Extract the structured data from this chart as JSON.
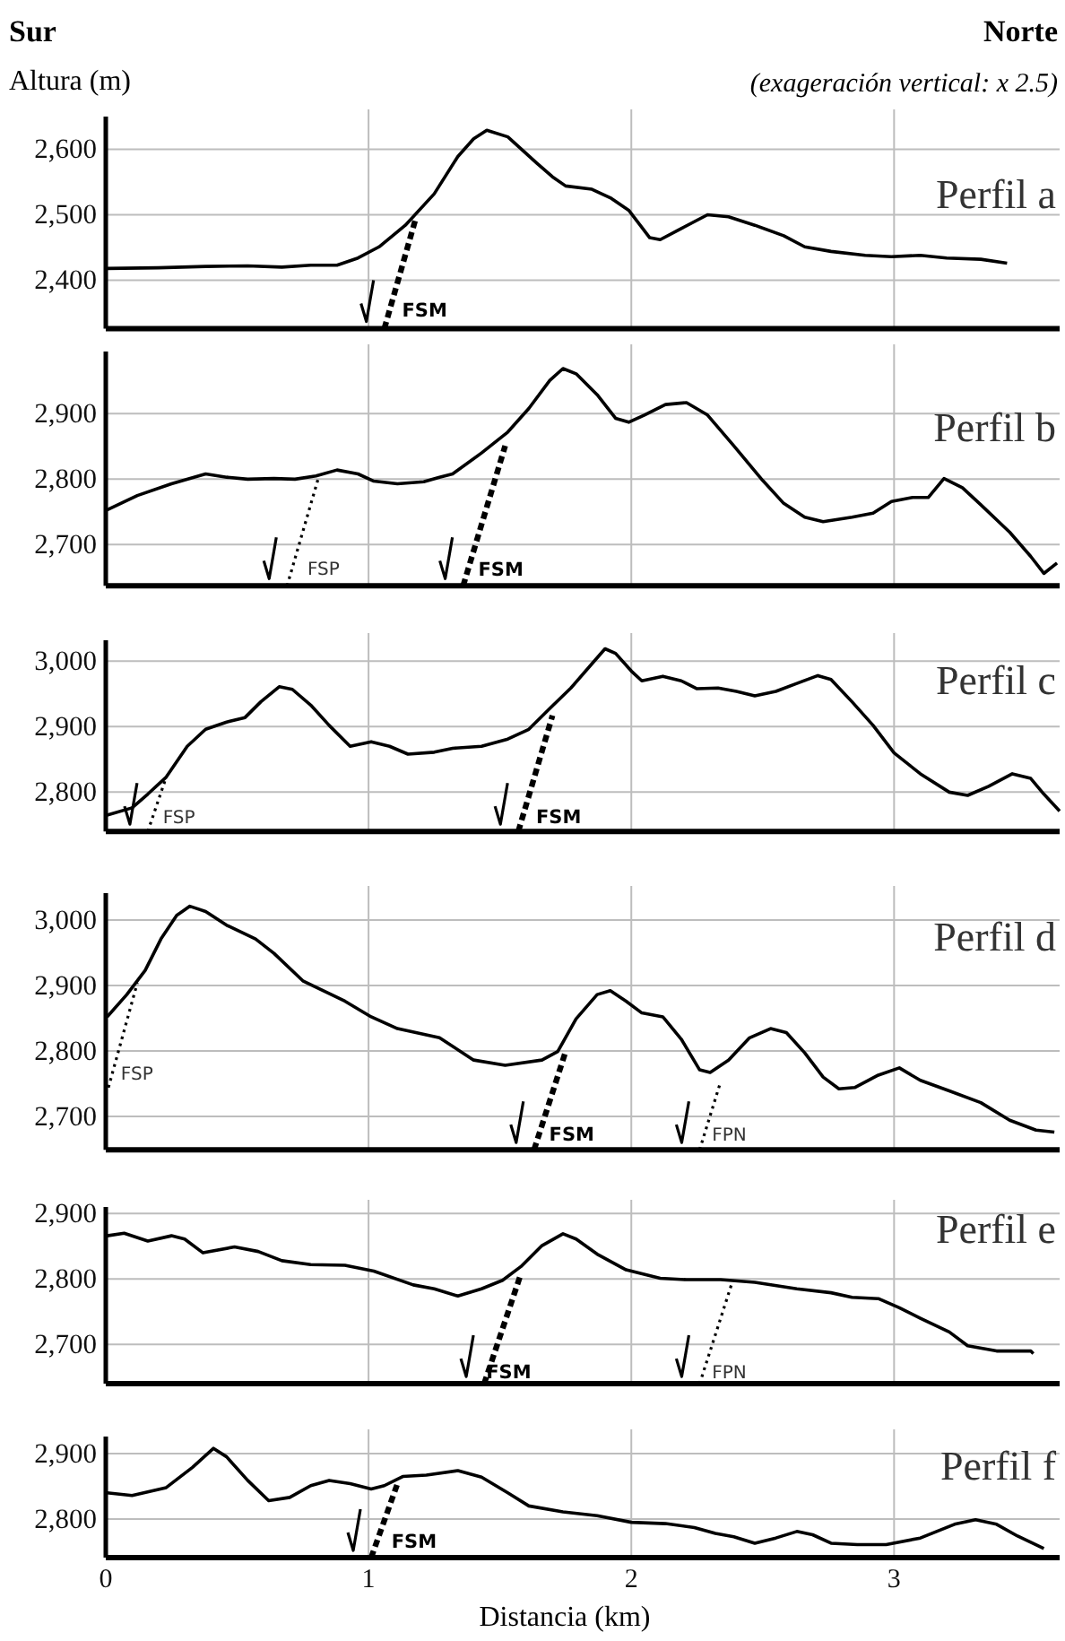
{
  "chart_data": [
    {
      "type": "line",
      "title": "Perfil a",
      "ylabel": "Altura (m)",
      "annotations": [
        "Sur",
        "Norte",
        "(exageración vertical: x 2.5)",
        {
          "text": "FSM",
          "x": 1.1,
          "y": 2355
        }
      ],
      "xlim": [
        0,
        3.63
      ],
      "xticks": [
        0,
        1,
        2,
        3
      ],
      "ylim": [
        2326,
        2650
      ],
      "yticks": [
        {
          "value": 2400,
          "label": "2,400"
        },
        {
          "value": 2500,
          "label": "2,500"
        },
        {
          "value": 2600,
          "label": "2,600"
        }
      ],
      "grid": true,
      "tick_labels": "y",
      "marker": "none",
      "line_style": "solid",
      "series": [
        {
          "color": "#000000",
          "x": [
            0.005,
            0.2,
            0.38,
            0.54,
            0.67,
            0.78,
            0.88,
            0.96,
            1.04,
            1.14,
            1.25,
            1.34,
            1.4,
            1.45,
            1.53,
            1.64,
            1.7,
            1.75,
            1.85,
            1.92,
            1.99,
            2.07,
            2.11,
            2.19,
            2.29,
            2.37,
            2.47,
            2.58,
            2.66,
            2.76,
            2.89,
            2.99,
            3.1,
            3.2,
            3.33,
            3.43
          ],
          "values": [
            2418,
            2419,
            2421,
            2422,
            2420,
            2423,
            2423,
            2434,
            2451,
            2484,
            2532,
            2589,
            2616,
            2629,
            2619,
            2579,
            2558,
            2544,
            2539,
            2526,
            2507,
            2465,
            2462,
            2479,
            2500,
            2497,
            2484,
            2468,
            2451,
            2444,
            2438,
            2436,
            2438,
            2434,
            2432,
            2426
          ]
        },
        {
          "color": "#000000",
          "line_style": "dashed",
          "x": [
            1.06,
            1.18
          ],
          "values": [
            2326,
            2495
          ]
        }
      ]
    },
    {
      "type": "line",
      "title": "Perfil b",
      "annotations": [
        {
          "text": "FSP",
          "x": 0.74,
          "y": 2663
        },
        {
          "text": "FSM",
          "x": 1.39,
          "y": 2663
        }
      ],
      "xlim": [
        0,
        3.63
      ],
      "xticks": [
        0,
        1,
        2,
        3
      ],
      "ylim": [
        2637,
        2995
      ],
      "yticks": [
        {
          "value": 2700,
          "label": "2,700"
        },
        {
          "value": 2800,
          "label": "2,800"
        },
        {
          "value": 2900,
          "label": "2,900"
        }
      ],
      "grid": true,
      "tick_labels": "y",
      "marker": "none",
      "line_style": "solid",
      "series": [
        {
          "color": "#000000",
          "x": [
            0.005,
            0.12,
            0.25,
            0.38,
            0.46,
            0.54,
            0.64,
            0.72,
            0.8,
            0.88,
            0.96,
            1.02,
            1.11,
            1.21,
            1.27,
            1.32,
            1.43,
            1.53,
            1.61,
            1.69,
            1.74,
            1.79,
            1.87,
            1.94,
            1.99,
            2.05,
            2.13,
            2.21,
            2.29,
            2.39,
            2.5,
            2.58,
            2.66,
            2.73,
            2.84,
            2.92,
            2.99,
            3.07,
            3.13,
            3.19,
            3.26,
            3.33,
            3.44,
            3.52,
            3.57,
            3.62
          ],
          "values": [
            2753,
            2775,
            2793,
            2808,
            2803,
            2800,
            2801,
            2800,
            2805,
            2814,
            2808,
            2797,
            2793,
            2796,
            2803,
            2808,
            2840,
            2872,
            2908,
            2951,
            2969,
            2961,
            2929,
            2893,
            2887,
            2898,
            2914,
            2917,
            2898,
            2851,
            2798,
            2763,
            2742,
            2735,
            2742,
            2748,
            2766,
            2772,
            2772,
            2801,
            2787,
            2761,
            2719,
            2682,
            2656,
            2672
          ]
        },
        {
          "color": "#000000",
          "line_style": "dotted",
          "x": [
            0.69,
            0.81
          ],
          "values": [
            2637,
            2803
          ]
        },
        {
          "color": "#000000",
          "line_style": "dashed",
          "x": [
            1.36,
            1.52
          ],
          "values": [
            2637,
            2851
          ]
        }
      ]
    },
    {
      "type": "line",
      "title": "Perfil c",
      "annotations": [
        {
          "text": "FSP",
          "x": 0.19,
          "y": 2762
        },
        {
          "text": "FSM",
          "x": 1.61,
          "y": 2762
        }
      ],
      "xlim": [
        0,
        3.63
      ],
      "xticks": [
        0,
        1,
        2,
        3
      ],
      "ylim": [
        2740,
        3032
      ],
      "yticks": [
        {
          "value": 2800,
          "label": "2,800"
        },
        {
          "value": 2900,
          "label": "2,900"
        },
        {
          "value": 3000,
          "label": "3,000"
        }
      ],
      "grid": true,
      "tick_labels": "y",
      "marker": "none",
      "line_style": "solid",
      "series": [
        {
          "color": "#000000",
          "x": [
            0.005,
            0.1,
            0.16,
            0.23,
            0.31,
            0.38,
            0.46,
            0.53,
            0.59,
            0.66,
            0.71,
            0.78,
            0.85,
            0.93,
            1.01,
            1.08,
            1.15,
            1.25,
            1.32,
            1.43,
            1.53,
            1.61,
            1.69,
            1.77,
            1.85,
            1.9,
            1.94,
            2.0,
            2.04,
            2.12,
            2.19,
            2.25,
            2.33,
            2.4,
            2.47,
            2.55,
            2.63,
            2.71,
            2.76,
            2.84,
            2.92,
            3.0,
            3.1,
            3.21,
            3.28,
            3.36,
            3.45,
            3.52,
            3.57,
            3.63
          ],
          "values": [
            2765,
            2776,
            2797,
            2823,
            2870,
            2896,
            2907,
            2914,
            2938,
            2961,
            2957,
            2933,
            2902,
            2870,
            2877,
            2870,
            2858,
            2861,
            2867,
            2870,
            2881,
            2896,
            2928,
            2959,
            2996,
            3019,
            3012,
            2985,
            2970,
            2977,
            2970,
            2958,
            2959,
            2954,
            2947,
            2954,
            2966,
            2978,
            2972,
            2938,
            2902,
            2860,
            2828,
            2800,
            2795,
            2809,
            2828,
            2821,
            2797,
            2771
          ]
        },
        {
          "color": "#000000",
          "line_style": "dotted",
          "x": [
            0.16,
            0.23
          ],
          "values": [
            2740,
            2823
          ]
        },
        {
          "color": "#000000",
          "line_style": "dashed",
          "x": [
            1.57,
            1.7
          ],
          "values": [
            2740,
            2917
          ]
        }
      ]
    },
    {
      "type": "line",
      "title": "Perfil d",
      "annotations": [
        {
          "text": "FSP",
          "x": 0.03,
          "y": 2765
        },
        {
          "text": "FSM",
          "x": 1.66,
          "y": 2673
        },
        {
          "text": "FPN",
          "x": 2.28,
          "y": 2673
        }
      ],
      "xlim": [
        0,
        3.63
      ],
      "xticks": [
        0,
        1,
        2,
        3
      ],
      "ylim": [
        2649,
        3041
      ],
      "yticks": [
        {
          "value": 2700,
          "label": "2,700"
        },
        {
          "value": 2800,
          "label": "2,800"
        },
        {
          "value": 2900,
          "label": "2,900"
        },
        {
          "value": 3000,
          "label": "3,000"
        }
      ],
      "grid": true,
      "tick_labels": "y",
      "marker": "none",
      "line_style": "solid",
      "series": [
        {
          "color": "#000000",
          "x": [
            0.005,
            0.08,
            0.15,
            0.21,
            0.27,
            0.32,
            0.38,
            0.46,
            0.57,
            0.64,
            0.75,
            0.91,
            1.01,
            1.11,
            1.27,
            1.4,
            1.52,
            1.66,
            1.72,
            1.79,
            1.87,
            1.92,
            1.98,
            2.04,
            2.12,
            2.19,
            2.26,
            2.3,
            2.37,
            2.45,
            2.53,
            2.59,
            2.66,
            2.73,
            2.79,
            2.85,
            2.94,
            3.02,
            3.1,
            3.21,
            3.33,
            3.44,
            3.54,
            3.61
          ],
          "values": [
            2852,
            2886,
            2923,
            2971,
            3007,
            3021,
            3013,
            2992,
            2971,
            2949,
            2907,
            2876,
            2852,
            2834,
            2820,
            2786,
            2778,
            2786,
            2799,
            2849,
            2886,
            2892,
            2876,
            2858,
            2852,
            2818,
            2771,
            2767,
            2786,
            2820,
            2834,
            2828,
            2797,
            2760,
            2742,
            2744,
            2763,
            2774,
            2755,
            2739,
            2721,
            2694,
            2679,
            2676
          ]
        },
        {
          "color": "#000000",
          "line_style": "dotted",
          "x": [
            0.01,
            0.12
          ],
          "values": [
            2744,
            2904
          ]
        },
        {
          "color": "#000000",
          "line_style": "dashed",
          "x": [
            1.63,
            1.75
          ],
          "values": [
            2649,
            2799
          ]
        },
        {
          "color": "#000000",
          "line_style": "dotted",
          "x": [
            2.26,
            2.34
          ],
          "values": [
            2649,
            2753
          ]
        }
      ]
    },
    {
      "type": "line",
      "title": "Perfil e",
      "annotations": [
        {
          "text": "FSM",
          "x": 1.42,
          "y": 2658
        },
        {
          "text": "FPN",
          "x": 2.28,
          "y": 2658
        }
      ],
      "xlim": [
        0,
        3.63
      ],
      "xticks": [
        0,
        1,
        2,
        3
      ],
      "ylim": [
        2640,
        2910
      ],
      "yticks": [
        {
          "value": 2700,
          "label": "2,700"
        },
        {
          "value": 2800,
          "label": "2,800"
        },
        {
          "value": 2900,
          "label": "2,900"
        }
      ],
      "grid": true,
      "tick_labels": "y",
      "marker": "none",
      "line_style": "solid",
      "series": [
        {
          "color": "#000000",
          "x": [
            0.005,
            0.07,
            0.16,
            0.25,
            0.3,
            0.37,
            0.49,
            0.58,
            0.67,
            0.78,
            0.91,
            1.02,
            1.17,
            1.25,
            1.34,
            1.43,
            1.51,
            1.58,
            1.66,
            1.74,
            1.79,
            1.87,
            1.98,
            2.11,
            2.21,
            2.34,
            2.47,
            2.63,
            2.76,
            2.84,
            2.94,
            3.02,
            3.1,
            3.21,
            3.28,
            3.39,
            3.52,
            3.53
          ],
          "values": [
            2866,
            2870,
            2858,
            2866,
            2861,
            2840,
            2849,
            2842,
            2828,
            2822,
            2821,
            2812,
            2791,
            2785,
            2774,
            2785,
            2798,
            2819,
            2851,
            2869,
            2861,
            2838,
            2814,
            2801,
            2799,
            2799,
            2795,
            2785,
            2779,
            2772,
            2770,
            2756,
            2740,
            2719,
            2698,
            2690,
            2690,
            2686
          ]
        },
        {
          "color": "#000000",
          "line_style": "dashed",
          "x": [
            1.44,
            1.58
          ],
          "values": [
            2640,
            2808
          ]
        },
        {
          "color": "#000000",
          "line_style": "dotted",
          "x": [
            2.26,
            2.38
          ],
          "values": [
            2640,
            2790
          ]
        }
      ]
    },
    {
      "type": "line",
      "title": "Perfil f",
      "xlabel": "Distancia (km)",
      "annotations": [
        {
          "text": "FSM",
          "x": 1.06,
          "y": 2766
        }
      ],
      "xlim": [
        0,
        3.63
      ],
      "xticks": [
        0,
        1,
        2,
        3
      ],
      "ylim": [
        2741,
        2926
      ],
      "yticks": [
        {
          "value": 2800,
          "label": "2,800"
        },
        {
          "value": 2900,
          "label": "2,900"
        }
      ],
      "grid": true,
      "marker": "none",
      "line_style": "solid",
      "series": [
        {
          "color": "#000000",
          "x": [
            0.005,
            0.1,
            0.23,
            0.33,
            0.41,
            0.46,
            0.54,
            0.62,
            0.7,
            0.78,
            0.85,
            0.93,
            1.01,
            1.06,
            1.13,
            1.22,
            1.34,
            1.43,
            1.53,
            1.61,
            1.74,
            1.87,
            2.0,
            2.13,
            2.24,
            2.32,
            2.39,
            2.47,
            2.55,
            2.63,
            2.69,
            2.76,
            2.86,
            2.97,
            3.1,
            3.23,
            3.31,
            3.39,
            3.47,
            3.57
          ],
          "values": [
            2840,
            2836,
            2848,
            2879,
            2908,
            2895,
            2859,
            2828,
            2833,
            2851,
            2859,
            2854,
            2846,
            2851,
            2865,
            2867,
            2874,
            2864,
            2840,
            2820,
            2811,
            2805,
            2795,
            2793,
            2787,
            2778,
            2773,
            2763,
            2771,
            2781,
            2776,
            2763,
            2761,
            2761,
            2771,
            2792,
            2799,
            2792,
            2774,
            2755
          ]
        },
        {
          "color": "#000000",
          "line_style": "dashed",
          "x": [
            1.01,
            1.11
          ],
          "values": [
            2741,
            2854
          ]
        }
      ]
    }
  ]
}
